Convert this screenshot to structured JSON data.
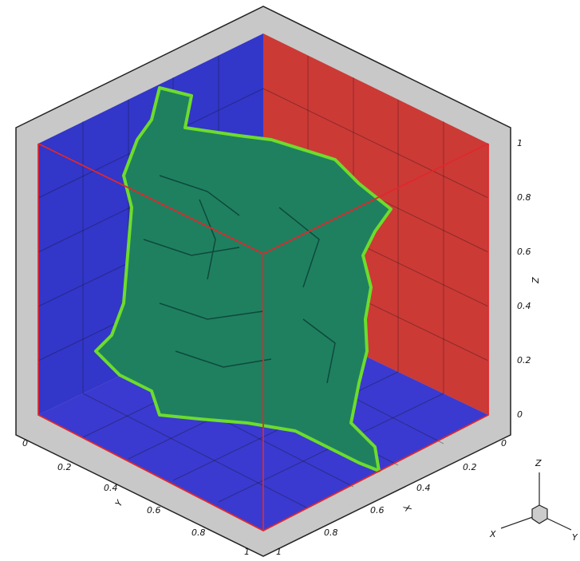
{
  "axes": {
    "x": {
      "label": "X",
      "ticks": [
        "0",
        "0.2",
        "0.4",
        "0.6",
        "0.8",
        "1"
      ]
    },
    "y": {
      "label": "Y",
      "ticks": [
        "0",
        "0.2",
        "0.4",
        "0.6",
        "0.8",
        "1"
      ]
    },
    "z": {
      "label": "Z",
      "ticks": [
        "0",
        "0.2",
        "0.4",
        "0.6",
        "0.8",
        "1"
      ]
    }
  },
  "triad": {
    "x": "X",
    "y": "Y",
    "z": "Z"
  }
}
